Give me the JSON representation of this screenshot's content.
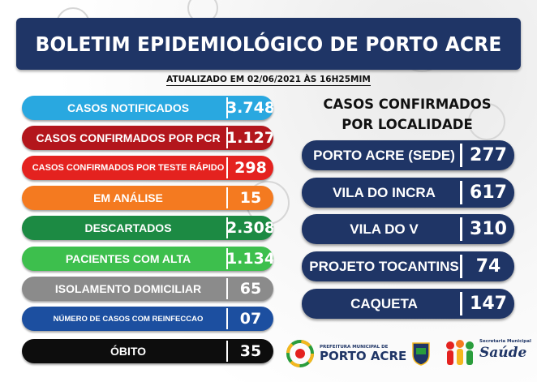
{
  "header": {
    "title": "BOLETIM EPIDEMIOLÓGICO DE PORTO ACRE",
    "updated": "ATUALIZADO EM 02/06/2021 ÀS 16H25MIM"
  },
  "stats": [
    {
      "label": "CASOS NOTIFICADOS",
      "value": "3.748",
      "color": "#29a8e0"
    },
    {
      "label": "CASOS CONFIRMADOS POR PCR",
      "value": "1.127",
      "color": "#b3161c"
    },
    {
      "label": "CASOS CONFIRMADOS POR TESTE RÁPIDO",
      "value": "298",
      "color": "#e4221f"
    },
    {
      "label": "EM ANÁLISE",
      "value": "15",
      "color": "#f47a20"
    },
    {
      "label": "DESCARTADOS",
      "value": "2.308",
      "color": "#1c8a43"
    },
    {
      "label": "PACIENTES COM ALTA",
      "value": "1.134",
      "color": "#3dbf4d"
    },
    {
      "label": "ISOLAMENTO DOMICILIAR",
      "value": "65",
      "color": "#8b8b8b"
    },
    {
      "label": "NÚMERO DE CASOS COM REINFECCAO",
      "value": "07",
      "color": "#1c4fa0"
    },
    {
      "label": "ÓBITO",
      "value": "35",
      "color": "#0d0d0d"
    }
  ],
  "localidades": {
    "title_line1": "CASOS CONFIRMADOS",
    "title_line2": "POR LOCALIDADE",
    "items": [
      {
        "label": "PORTO ACRE (SEDE)",
        "value": "277"
      },
      {
        "label": "VILA DO INCRA",
        "value": "617"
      },
      {
        "label": "VILA DO V",
        "value": "310"
      },
      {
        "label": "PROJETO TOCANTINS",
        "value": "74"
      },
      {
        "label": "CAQUETA",
        "value": "147"
      }
    ]
  },
  "footer": {
    "prefeitura_small": "PREFEITURA MUNICIPAL DE",
    "prefeitura_big": "PORTO ACRE",
    "secretaria_small": "Secretaria Municipal",
    "secretaria_big": "Saúde"
  }
}
